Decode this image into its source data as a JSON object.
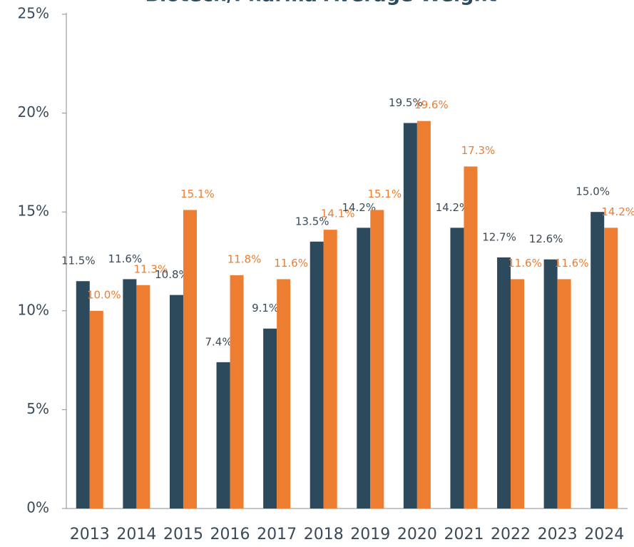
{
  "chart_data": {
    "type": "bar",
    "title": "Biotech/Pharma Average Weight",
    "categories": [
      "2013",
      "2014",
      "2015",
      "2016",
      "2017",
      "2018",
      "2019",
      "2020",
      "2021",
      "2022",
      "2023",
      "2024"
    ],
    "series": [
      {
        "color": "#2d4a5c",
        "values": [
          11.5,
          11.6,
          10.8,
          7.4,
          9.1,
          13.5,
          14.2,
          19.5,
          14.2,
          12.7,
          12.6,
          15.0
        ],
        "value_labels": [
          "11.5%",
          "11.6%",
          "10.8%",
          "7.4%",
          "9.1%",
          "13.5%",
          "14.2%",
          "19.5%",
          "14.2%",
          "12.7%",
          "12.6%",
          "15.0%"
        ]
      },
      {
        "color": "#ed7d31",
        "values": [
          10.0,
          11.3,
          15.1,
          11.8,
          11.6,
          14.1,
          15.1,
          19.6,
          17.3,
          11.6,
          11.6,
          14.2
        ],
        "value_labels": [
          "10.0%",
          "11.3%",
          "15.1%",
          "11.8%",
          "11.6%",
          "14.1%",
          "15.1%",
          "19.6%",
          "17.3%",
          "11.6%",
          "11.6%",
          "14.2%"
        ]
      }
    ],
    "ylim": [
      0,
      25
    ],
    "yticks": [
      {
        "value": 0,
        "label": "0%"
      },
      {
        "value": 5,
        "label": "5%"
      },
      {
        "value": 10,
        "label": "10%"
      },
      {
        "value": 15,
        "label": "15%"
      },
      {
        "value": 20,
        "label": "20%"
      },
      {
        "value": 25,
        "label": "25%"
      }
    ]
  }
}
